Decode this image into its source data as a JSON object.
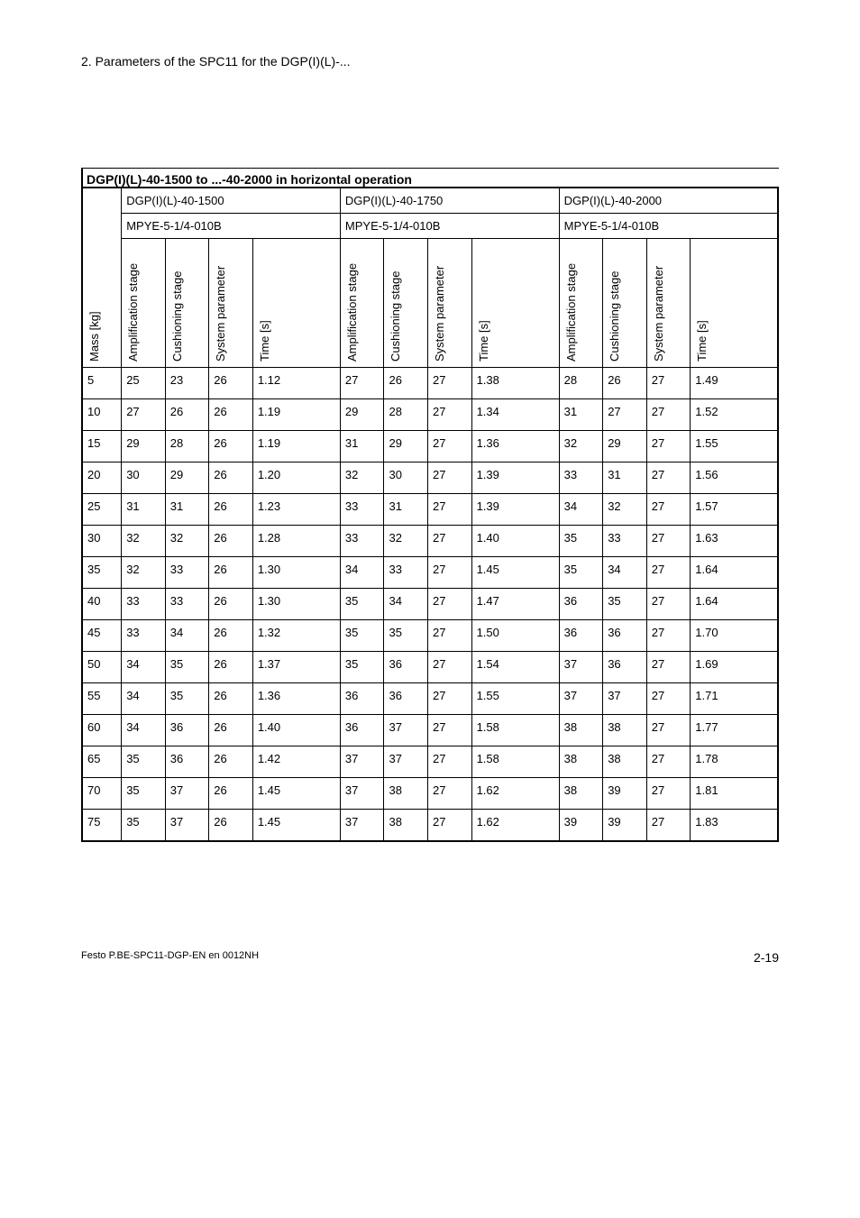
{
  "heading": "2.  Parameters of the SPC11 for the DGP(I)(L)-...",
  "table_title": "DGP(I)(L)-40-1500 to ...-40-2000 in horizontal operation",
  "groups": [
    {
      "device": "DGP(I)(L)-40-1500",
      "valve": "MPYE-5-1/4-010B"
    },
    {
      "device": "DGP(I)(L)-40-1750",
      "valve": "MPYE-5-1/4-010B"
    },
    {
      "device": "DGP(I)(L)-40-2000",
      "valve": "MPYE-5-1/4-010B"
    }
  ],
  "col_headers": {
    "mass": "Mass [kg]",
    "amp": "Amplification stage",
    "cush": "Cushioning stage",
    "sys": "System parameter",
    "time": "Time [s]"
  },
  "rows": [
    {
      "mass": "5",
      "g1": [
        "25",
        "23",
        "26",
        "1.12"
      ],
      "g2": [
        "27",
        "26",
        "27",
        "1.38"
      ],
      "g3": [
        "28",
        "26",
        "27",
        "1.49"
      ]
    },
    {
      "mass": "10",
      "g1": [
        "27",
        "26",
        "26",
        "1.19"
      ],
      "g2": [
        "29",
        "28",
        "27",
        "1.34"
      ],
      "g3": [
        "31",
        "27",
        "27",
        "1.52"
      ]
    },
    {
      "mass": "15",
      "g1": [
        "29",
        "28",
        "26",
        "1.19"
      ],
      "g2": [
        "31",
        "29",
        "27",
        "1.36"
      ],
      "g3": [
        "32",
        "29",
        "27",
        "1.55"
      ]
    },
    {
      "mass": "20",
      "g1": [
        "30",
        "29",
        "26",
        "1.20"
      ],
      "g2": [
        "32",
        "30",
        "27",
        "1.39"
      ],
      "g3": [
        "33",
        "31",
        "27",
        "1.56"
      ]
    },
    {
      "mass": "25",
      "g1": [
        "31",
        "31",
        "26",
        "1.23"
      ],
      "g2": [
        "33",
        "31",
        "27",
        "1.39"
      ],
      "g3": [
        "34",
        "32",
        "27",
        "1.57"
      ]
    },
    {
      "mass": "30",
      "g1": [
        "32",
        "32",
        "26",
        "1.28"
      ],
      "g2": [
        "33",
        "32",
        "27",
        "1.40"
      ],
      "g3": [
        "35",
        "33",
        "27",
        "1.63"
      ]
    },
    {
      "mass": "35",
      "g1": [
        "32",
        "33",
        "26",
        "1.30"
      ],
      "g2": [
        "34",
        "33",
        "27",
        "1.45"
      ],
      "g3": [
        "35",
        "34",
        "27",
        "1.64"
      ]
    },
    {
      "mass": "40",
      "g1": [
        "33",
        "33",
        "26",
        "1.30"
      ],
      "g2": [
        "35",
        "34",
        "27",
        "1.47"
      ],
      "g3": [
        "36",
        "35",
        "27",
        "1.64"
      ]
    },
    {
      "mass": "45",
      "g1": [
        "33",
        "34",
        "26",
        "1.32"
      ],
      "g2": [
        "35",
        "35",
        "27",
        "1.50"
      ],
      "g3": [
        "36",
        "36",
        "27",
        "1.70"
      ]
    },
    {
      "mass": "50",
      "g1": [
        "34",
        "35",
        "26",
        "1.37"
      ],
      "g2": [
        "35",
        "36",
        "27",
        "1.54"
      ],
      "g3": [
        "37",
        "36",
        "27",
        "1.69"
      ]
    },
    {
      "mass": "55",
      "g1": [
        "34",
        "35",
        "26",
        "1.36"
      ],
      "g2": [
        "36",
        "36",
        "27",
        "1.55"
      ],
      "g3": [
        "37",
        "37",
        "27",
        "1.71"
      ]
    },
    {
      "mass": "60",
      "g1": [
        "34",
        "36",
        "26",
        "1.40"
      ],
      "g2": [
        "36",
        "37",
        "27",
        "1.58"
      ],
      "g3": [
        "38",
        "38",
        "27",
        "1.77"
      ]
    },
    {
      "mass": "65",
      "g1": [
        "35",
        "36",
        "26",
        "1.42"
      ],
      "g2": [
        "37",
        "37",
        "27",
        "1.58"
      ],
      "g3": [
        "38",
        "38",
        "27",
        "1.78"
      ]
    },
    {
      "mass": "70",
      "g1": [
        "35",
        "37",
        "26",
        "1.45"
      ],
      "g2": [
        "37",
        "38",
        "27",
        "1.62"
      ],
      "g3": [
        "38",
        "39",
        "27",
        "1.81"
      ]
    },
    {
      "mass": "75",
      "g1": [
        "35",
        "37",
        "26",
        "1.45"
      ],
      "g2": [
        "37",
        "38",
        "27",
        "1.62"
      ],
      "g3": [
        "39",
        "39",
        "27",
        "1.83"
      ]
    }
  ],
  "footer_left": "Festo P.BE-SPC11-DGP-EN  en 0012NH",
  "footer_right": "2-19"
}
